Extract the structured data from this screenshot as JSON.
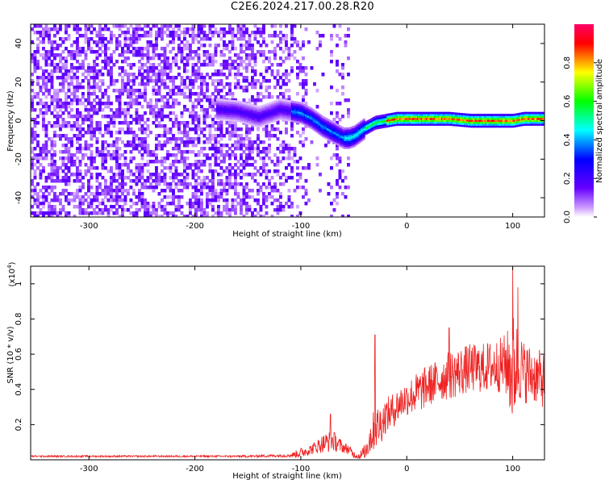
{
  "title": "C2E6.2024.217.00.28.R20",
  "chart_data": [
    {
      "type": "heatmap",
      "xlabel": "Height of straight line (km)",
      "ylabel": "Frequency (Hz)",
      "xlim": [
        -355,
        130
      ],
      "ylim": [
        -50,
        50
      ],
      "xticks": [
        -300,
        -200,
        -100,
        0,
        100
      ],
      "yticks": [
        -40,
        -20,
        0,
        20,
        40
      ],
      "ridge": {
        "x": [
          -180,
          -160,
          -140,
          -120,
          -100,
          -90,
          -80,
          -70,
          -60,
          -55,
          -50,
          -40,
          -30,
          -20,
          -10,
          0,
          20,
          40,
          60,
          80,
          95,
          100,
          110,
          130
        ],
        "y": [
          6,
          5,
          2,
          6,
          4,
          1,
          -3,
          -6,
          -9,
          -9,
          -8,
          -4,
          -1,
          0,
          1,
          1,
          1,
          1,
          0,
          0,
          0,
          0,
          1,
          1
        ]
      },
      "colorbar": {
        "label": "Normalized spectral amplitude",
        "ticks": [
          0.0,
          0.2,
          0.4,
          0.6,
          0.8
        ],
        "range": [
          0,
          1
        ],
        "colors": [
          "#ffffff",
          "#cc99ff",
          "#6600ff",
          "#0000ff",
          "#00ffff",
          "#00ff00",
          "#ffff00",
          "#ff0000",
          "#ff0066"
        ]
      }
    },
    {
      "type": "line",
      "xlabel": "Height of straight line (km)",
      "ylabel": "SNR (10 * v/v)",
      "multiplier": "(x10",
      "multiplier_exp": "4",
      "multiplier_close": ")",
      "xlim": [
        -355,
        130
      ],
      "ylim": [
        0,
        1.1
      ],
      "xticks": [
        -300,
        -200,
        -100,
        0,
        100
      ],
      "yticks": [
        0.2,
        0.4,
        0.6,
        0.8,
        1.0
      ],
      "ytick_labels": [
        "0.2",
        "0.4",
        "0.6",
        "0.8",
        "1"
      ],
      "color": "#ee2222",
      "series": [
        {
          "x": [
            -355,
            -300,
            -250,
            -200,
            -150,
            -110,
            -100,
            -90,
            -80,
            -75,
            -70,
            -65,
            -60,
            -55,
            -50,
            -45,
            -40,
            -35,
            -30,
            -25,
            -20,
            -15,
            -10,
            -5,
            0,
            10,
            20,
            30,
            40,
            50,
            60,
            70,
            80,
            90,
            95,
            100,
            105,
            110,
            120,
            130
          ],
          "y": [
            0.02,
            0.02,
            0.02,
            0.02,
            0.02,
            0.025,
            0.04,
            0.06,
            0.09,
            0.1,
            0.11,
            0.09,
            0.07,
            0.06,
            0.03,
            0.02,
            0.04,
            0.12,
            0.18,
            0.2,
            0.25,
            0.27,
            0.3,
            0.33,
            0.35,
            0.38,
            0.42,
            0.45,
            0.48,
            0.5,
            0.52,
            0.52,
            0.53,
            0.54,
            0.54,
            0.5,
            0.55,
            0.5,
            0.48,
            0.45
          ],
          "noise_amp": [
            0.005,
            0.005,
            0.005,
            0.005,
            0.006,
            0.01,
            0.03,
            0.03,
            0.05,
            0.06,
            0.06,
            0.05,
            0.03,
            0.03,
            0.02,
            0.02,
            0.05,
            0.1,
            0.12,
            0.12,
            0.1,
            0.1,
            0.1,
            0.1,
            0.1,
            0.12,
            0.12,
            0.12,
            0.14,
            0.14,
            0.14,
            0.14,
            0.15,
            0.16,
            0.2,
            0.35,
            0.22,
            0.18,
            0.16,
            0.16
          ]
        }
      ],
      "peaks": {
        "x": [
          -72,
          -30,
          40,
          100,
          105
        ],
        "y": [
          0.26,
          0.71,
          0.75,
          1.1,
          0.98
        ]
      }
    }
  ]
}
